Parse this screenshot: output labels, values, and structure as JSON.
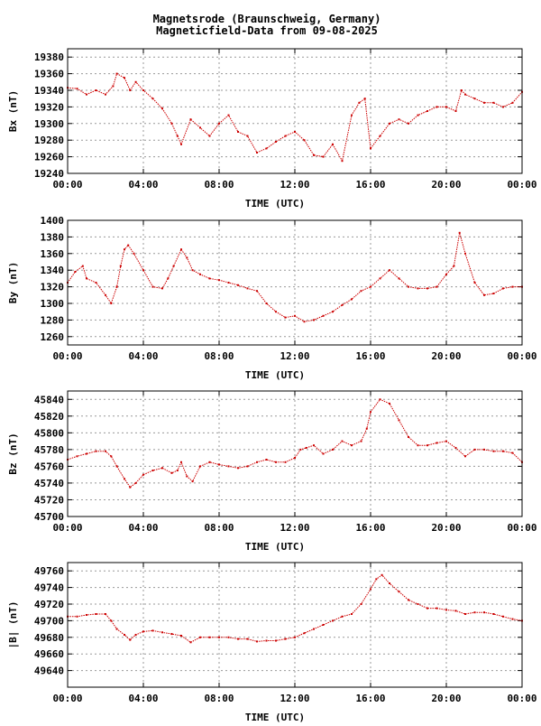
{
  "title": [
    "Magnetsrode (Braunschweig, Germany)",
    "Magneticfield-Data from 09-08-2025"
  ],
  "colors": {
    "data": "#cc0000",
    "grid": "#999999",
    "frame": "#000000"
  },
  "chart_data": [
    {
      "type": "scatter",
      "ylabel": "Bx (nT)",
      "xlabel": "TIME (UTC)",
      "xlim": [
        0,
        24
      ],
      "ylim": [
        19240,
        19390
      ],
      "xticks": [
        "00:00",
        "04:00",
        "08:00",
        "12:00",
        "16:00",
        "20:00",
        "00:00"
      ],
      "yticks": [
        19240,
        19260,
        19280,
        19300,
        19320,
        19340,
        19360,
        19380
      ],
      "series": [
        {
          "x": [
            0,
            0.5,
            1,
            1.5,
            2,
            2.4,
            2.6,
            3,
            3.3,
            3.6,
            4,
            4.5,
            5,
            5.5,
            5.8,
            6,
            6.5,
            7,
            7.5,
            8,
            8.5,
            9,
            9.5,
            10,
            10.5,
            11,
            11.5,
            12,
            12.5,
            13,
            13.5,
            14,
            14.5,
            15,
            15.4,
            15.7,
            16,
            16.5,
            17,
            17.5,
            18,
            18.5,
            19,
            19.5,
            20,
            20.5,
            20.8,
            21,
            21.5,
            22,
            22.5,
            23,
            23.5,
            24
          ],
          "y": [
            19343,
            19342,
            19335,
            19340,
            19335,
            19345,
            19360,
            19355,
            19340,
            19350,
            19340,
            19330,
            19318,
            19300,
            19285,
            19275,
            19305,
            19295,
            19285,
            19300,
            19310,
            19290,
            19285,
            19265,
            19270,
            19278,
            19285,
            19290,
            19280,
            19262,
            19260,
            19275,
            19255,
            19310,
            19325,
            19330,
            19270,
            19285,
            19300,
            19305,
            19300,
            19310,
            19315,
            19320,
            19320,
            19315,
            19340,
            19335,
            19330,
            19325,
            19325,
            19320,
            19325,
            19338
          ]
        }
      ]
    },
    {
      "type": "scatter",
      "ylabel": "By (nT)",
      "xlabel": "TIME (UTC)",
      "xlim": [
        0,
        24
      ],
      "ylim": [
        1250,
        1400
      ],
      "xticks": [
        "00:00",
        "04:00",
        "08:00",
        "12:00",
        "16:00",
        "20:00",
        "00:00"
      ],
      "yticks": [
        1260,
        1280,
        1300,
        1320,
        1340,
        1360,
        1380,
        1400
      ],
      "series": [
        {
          "x": [
            0,
            0.4,
            0.8,
            1,
            1.5,
            2,
            2.3,
            2.6,
            2.8,
            3,
            3.2,
            3.5,
            4,
            4.5,
            5,
            5.3,
            5.6,
            6,
            6.3,
            6.6,
            7,
            7.5,
            8,
            8.5,
            9,
            9.5,
            10,
            10.5,
            11,
            11.5,
            12,
            12.5,
            13,
            13.5,
            14,
            14.5,
            15,
            15.5,
            16,
            16.5,
            17,
            17.5,
            18,
            18.5,
            19,
            19.5,
            20,
            20.4,
            20.7,
            21,
            21.5,
            22,
            22.5,
            23,
            23.5,
            24
          ],
          "y": [
            1325,
            1338,
            1345,
            1330,
            1325,
            1310,
            1300,
            1320,
            1345,
            1365,
            1370,
            1360,
            1340,
            1320,
            1318,
            1330,
            1345,
            1365,
            1355,
            1340,
            1335,
            1330,
            1328,
            1325,
            1322,
            1318,
            1315,
            1300,
            1290,
            1283,
            1285,
            1278,
            1280,
            1285,
            1290,
            1298,
            1305,
            1315,
            1320,
            1330,
            1340,
            1330,
            1320,
            1318,
            1318,
            1320,
            1335,
            1345,
            1385,
            1360,
            1325,
            1310,
            1312,
            1318,
            1320,
            1320
          ]
        }
      ]
    },
    {
      "type": "scatter",
      "ylabel": "Bz (nT)",
      "xlabel": "TIME (UTC)",
      "xlim": [
        0,
        24
      ],
      "ylim": [
        45700,
        45850
      ],
      "xticks": [
        "00:00",
        "04:00",
        "08:00",
        "12:00",
        "16:00",
        "20:00",
        "00:00"
      ],
      "yticks": [
        45700,
        45720,
        45740,
        45760,
        45780,
        45800,
        45820,
        45840
      ],
      "series": [
        {
          "x": [
            0,
            0.5,
            1,
            1.5,
            2,
            2.3,
            2.6,
            3,
            3.3,
            3.6,
            4,
            4.5,
            5,
            5.5,
            5.8,
            6,
            6.3,
            6.6,
            7,
            7.5,
            8,
            8.5,
            9,
            9.5,
            10,
            10.5,
            11,
            11.5,
            12,
            12.3,
            12.6,
            13,
            13.5,
            14,
            14.5,
            15,
            15.5,
            15.8,
            16,
            16.5,
            17,
            17.5,
            18,
            18.5,
            19,
            19.5,
            20,
            20.5,
            21,
            21.5,
            22,
            22.5,
            23,
            23.5,
            24
          ],
          "y": [
            45768,
            45772,
            45775,
            45778,
            45778,
            45772,
            45760,
            45745,
            45735,
            45740,
            45750,
            45755,
            45758,
            45752,
            45755,
            45765,
            45748,
            45742,
            45760,
            45765,
            45762,
            45760,
            45758,
            45760,
            45765,
            45768,
            45765,
            45765,
            45770,
            45780,
            45782,
            45785,
            45775,
            45780,
            45790,
            45785,
            45790,
            45805,
            45825,
            45840,
            45835,
            45815,
            45795,
            45785,
            45785,
            45788,
            45790,
            45782,
            45772,
            45780,
            45780,
            45778,
            45778,
            45776,
            45765
          ]
        }
      ]
    },
    {
      "type": "scatter",
      "ylabel": "|B| (nT)",
      "xlabel": "TIME (UTC)",
      "xlim": [
        0,
        24
      ],
      "ylim": [
        49620,
        49770
      ],
      "xticks": [
        "00:00",
        "04:00",
        "08:00",
        "12:00",
        "16:00",
        "20:00",
        "00:00"
      ],
      "yticks": [
        49640,
        49660,
        49680,
        49700,
        49720,
        49740,
        49760
      ],
      "series": [
        {
          "x": [
            0,
            0.5,
            1,
            1.5,
            2,
            2.3,
            2.6,
            3,
            3.3,
            3.6,
            4,
            4.5,
            5,
            5.5,
            6,
            6.5,
            7,
            7.5,
            8,
            8.5,
            9,
            9.5,
            10,
            10.5,
            11,
            11.5,
            12,
            12.5,
            13,
            13.5,
            14,
            14.5,
            15,
            15.5,
            16,
            16.3,
            16.6,
            17,
            17.5,
            18,
            18.5,
            19,
            19.5,
            20,
            20.5,
            21,
            21.5,
            22,
            22.5,
            23,
            23.5,
            24
          ],
          "y": [
            49705,
            49705,
            49707,
            49708,
            49708,
            49700,
            49690,
            49683,
            49677,
            49683,
            49687,
            49688,
            49686,
            49684,
            49682,
            49674,
            49680,
            49680,
            49680,
            49680,
            49678,
            49678,
            49675,
            49676,
            49676,
            49678,
            49680,
            49685,
            49690,
            49695,
            49700,
            49705,
            49708,
            49720,
            49738,
            49750,
            49755,
            49745,
            49735,
            49725,
            49720,
            49715,
            49715,
            49713,
            49712,
            49708,
            49710,
            49710,
            49708,
            49705,
            49702,
            49700
          ]
        }
      ]
    }
  ]
}
